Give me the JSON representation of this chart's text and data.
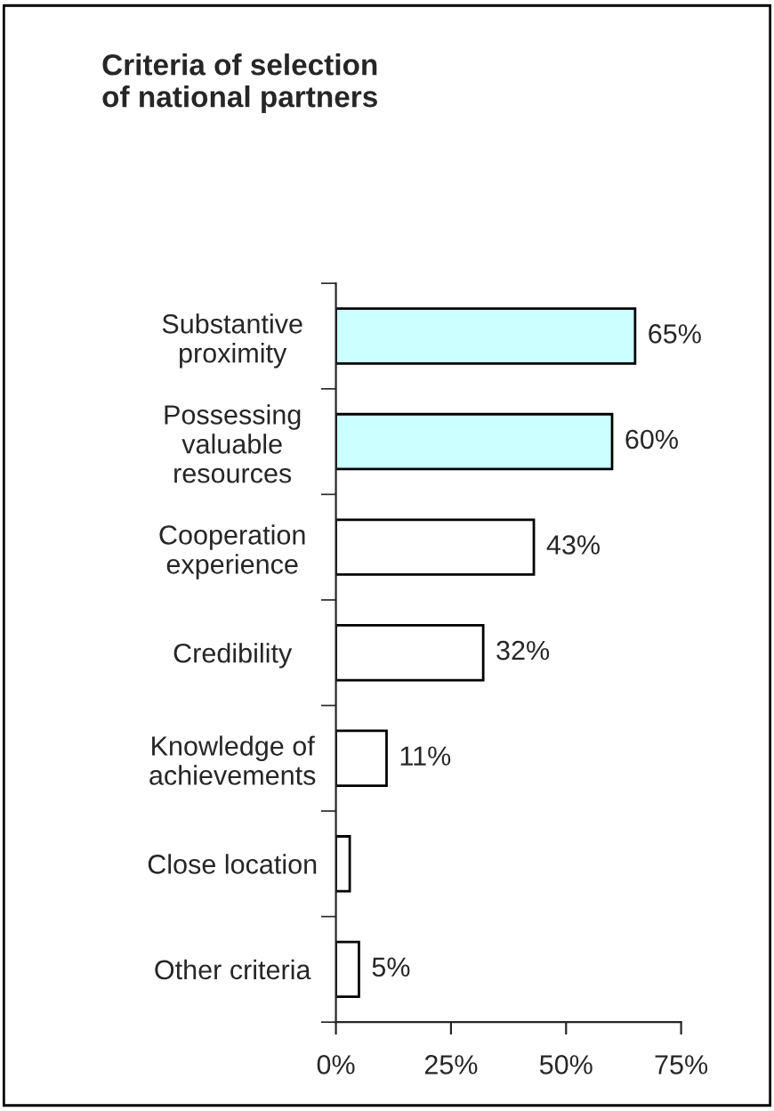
{
  "chart_data": {
    "type": "bar",
    "orientation": "horizontal",
    "title": "Criteria of selection\nof national partners",
    "categories": [
      "Substantive\nproximity",
      "Possessing\nvaluable\nresources",
      "Cooperation\nexperience",
      "Credibility",
      "Knowledge of\nachievements",
      "Close location",
      "Other criteria"
    ],
    "values": [
      65,
      60,
      43,
      32,
      11,
      3,
      5
    ],
    "colors": [
      "#ccffff",
      "#ccffff",
      "#ffffff",
      "#ffffff",
      "#ffffff",
      "#ffffff",
      "#ffffff"
    ],
    "value_labels": [
      "65%",
      "60%",
      "43%",
      "32%",
      "11%",
      null,
      "5%"
    ],
    "xlim": [
      0,
      75
    ],
    "xticks": [
      {
        "value": 0,
        "label": "0%"
      },
      {
        "value": 25,
        "label": "25%"
      },
      {
        "value": 50,
        "label": "50%"
      },
      {
        "value": 75,
        "label": "75%"
      }
    ],
    "grid": false,
    "legend": false
  }
}
